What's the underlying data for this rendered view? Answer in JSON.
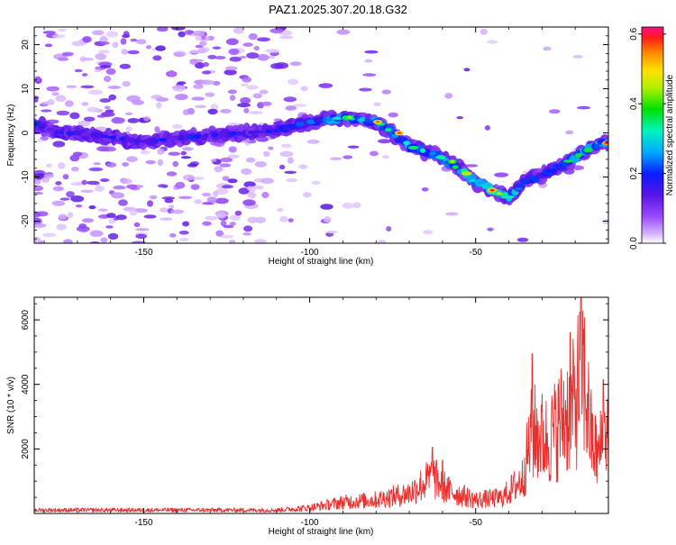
{
  "title": "PAZ1.2025.307.20.18.G32",
  "chart_data": [
    {
      "type": "heatmap",
      "xlabel": "Height of straight line (km)",
      "ylabel": "Frequency (Hz)",
      "xlim": [
        -183,
        -10
      ],
      "ylim": [
        -25,
        24
      ],
      "xticks": [
        -150,
        -100,
        -50
      ],
      "xtick_labels": [
        "-150",
        "-100",
        "-50"
      ],
      "yticks": [
        -20,
        -10,
        0,
        10,
        20
      ],
      "ytick_labels": [
        "-20",
        "-10",
        "0",
        "10",
        "20"
      ],
      "colorbar": {
        "label": "Normalized spectral amplitude",
        "range": [
          0.0,
          0.62
        ],
        "ticks": [
          0.0,
          0.2,
          0.4,
          0.6
        ],
        "tick_labels": [
          "0.0",
          "0.2",
          "0.4",
          "0.6"
        ]
      },
      "ridge": [
        {
          "x": -183,
          "y": 2.0
        },
        {
          "x": -175,
          "y": 0.0
        },
        {
          "x": -165,
          "y": -0.5
        },
        {
          "x": -150,
          "y": -2.0
        },
        {
          "x": -130,
          "y": -0.5
        },
        {
          "x": -110,
          "y": 0.5
        },
        {
          "x": -100,
          "y": 2.5
        },
        {
          "x": -90,
          "y": 3.5
        },
        {
          "x": -80,
          "y": 2.5
        },
        {
          "x": -75,
          "y": 0.0
        },
        {
          "x": -70,
          "y": -3.0
        },
        {
          "x": -62,
          "y": -5.0
        },
        {
          "x": -55,
          "y": -8.0
        },
        {
          "x": -50,
          "y": -11.0
        },
        {
          "x": -45,
          "y": -13.0
        },
        {
          "x": -40,
          "y": -14.5
        },
        {
          "x": -35,
          "y": -11.0
        },
        {
          "x": -28,
          "y": -9.0
        },
        {
          "x": -22,
          "y": -6.5
        },
        {
          "x": -17,
          "y": -4.0
        },
        {
          "x": -12,
          "y": -2.5
        },
        {
          "x": -10,
          "y": -2.0
        }
      ]
    },
    {
      "type": "line",
      "xlabel": "Height of straight line (km)",
      "ylabel": "SNR (10 * v/v)",
      "xlim": [
        -183,
        -10
      ],
      "ylim": [
        0,
        6700
      ],
      "xticks": [
        -150,
        -100,
        -50
      ],
      "xtick_labels": [
        "-150",
        "-100",
        "-50"
      ],
      "yticks": [
        2000,
        4000,
        6000
      ],
      "ytick_labels": [
        "2000",
        "4000",
        "6000"
      ],
      "color": "#e8312f",
      "series": [
        {
          "name": "SNR",
          "envelope": [
            {
              "x": -183,
              "v": 150
            },
            {
              "x": -110,
              "v": 150
            },
            {
              "x": -100,
              "v": 250
            },
            {
              "x": -90,
              "v": 500
            },
            {
              "x": -80,
              "v": 600
            },
            {
              "x": -70,
              "v": 900
            },
            {
              "x": -63,
              "v": 1600
            },
            {
              "x": -58,
              "v": 1000
            },
            {
              "x": -50,
              "v": 600
            },
            {
              "x": -42,
              "v": 700
            },
            {
              "x": -36,
              "v": 1500
            },
            {
              "x": -33,
              "v": 3600
            },
            {
              "x": -28,
              "v": 3200
            },
            {
              "x": -24,
              "v": 4200
            },
            {
              "x": -20,
              "v": 4800
            },
            {
              "x": -18,
              "v": 6700
            },
            {
              "x": -15,
              "v": 3200
            },
            {
              "x": -13,
              "v": 2500
            },
            {
              "x": -11,
              "v": 3800
            },
            {
              "x": -10,
              "v": 3600
            }
          ],
          "peaks": [
            {
              "x": -63,
              "v": 2050
            },
            {
              "x": -60,
              "v": 1650
            },
            {
              "x": -33,
              "v": 4950
            },
            {
              "x": -21.5,
              "v": 5600
            },
            {
              "x": -18.2,
              "v": 6700
            },
            {
              "x": -11.5,
              "v": 4150
            }
          ]
        }
      ]
    }
  ]
}
